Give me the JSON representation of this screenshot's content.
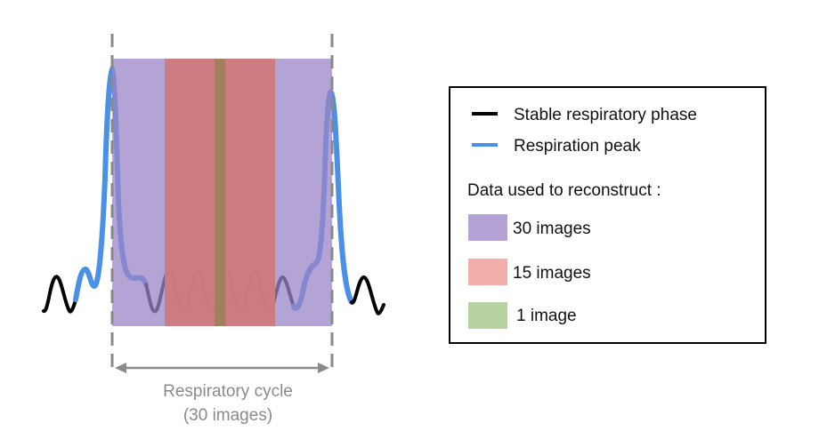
{
  "colors": {
    "stable_phase": "#000000",
    "respiration_peak": "#4a8fe8",
    "band_30_images": "#b4a2d6",
    "band_15_images": "#f2aeaa",
    "band_1_image": "#b7d3a2",
    "cycle_marker": "#8a8a8a"
  },
  "cycle": {
    "line1": "Respiratory cycle",
    "line2": "(30 images)"
  },
  "legend": {
    "stable_label": "Stable respiratory phase",
    "peak_label": "Respiration peak",
    "heading": "Data used to reconstruct :",
    "items": [
      {
        "label": "30 images",
        "color": "#b4a2d6"
      },
      {
        "label": "15 images",
        "color": "#f2aeaa"
      },
      {
        "label": "1 image",
        "color": "#b7d3a2"
      }
    ]
  }
}
